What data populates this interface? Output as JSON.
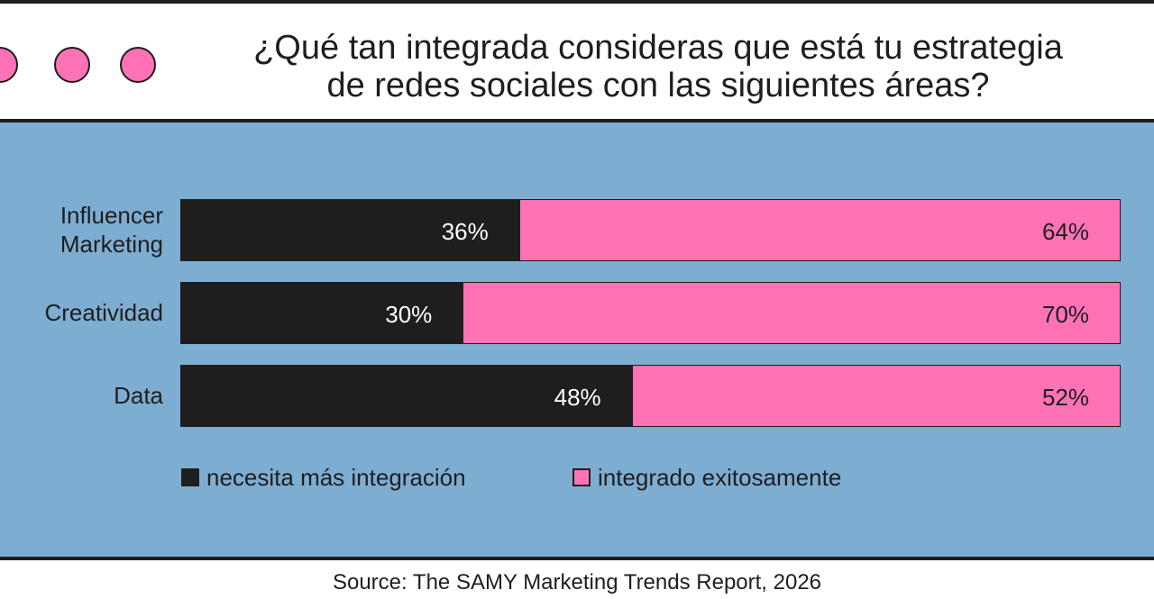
{
  "chart_data": {
    "type": "bar",
    "stacked": true,
    "orientation": "horizontal",
    "title": "¿Qué tan integrada consideras que está tu estrategia de redes sociales con las siguientes áreas?",
    "title_lines": [
      "¿Qué tan integrada consideras que está tu estrategia",
      "de redes sociales con las siguientes áreas?"
    ],
    "categories": [
      "Influencer Marketing",
      "Creatividad",
      "Data"
    ],
    "category_lines": [
      [
        "Influencer",
        "Marketing"
      ],
      [
        "Creatividad"
      ],
      [
        "Data"
      ]
    ],
    "series": [
      {
        "name": "necesita más integración",
        "values": [
          36,
          30,
          48
        ],
        "labels": [
          "36%",
          "30%",
          "48%"
        ],
        "color": "#1e1e1e"
      },
      {
        "name": "integrado exitosamente",
        "values": [
          64,
          70,
          52
        ],
        "labels": [
          "64%",
          "70%",
          "52%"
        ],
        "color": "#ff72b6"
      }
    ],
    "xlim": [
      0,
      100
    ],
    "legend_position": "bottom",
    "source": "Source: The SAMY Marketing Trends Report, 2026"
  }
}
